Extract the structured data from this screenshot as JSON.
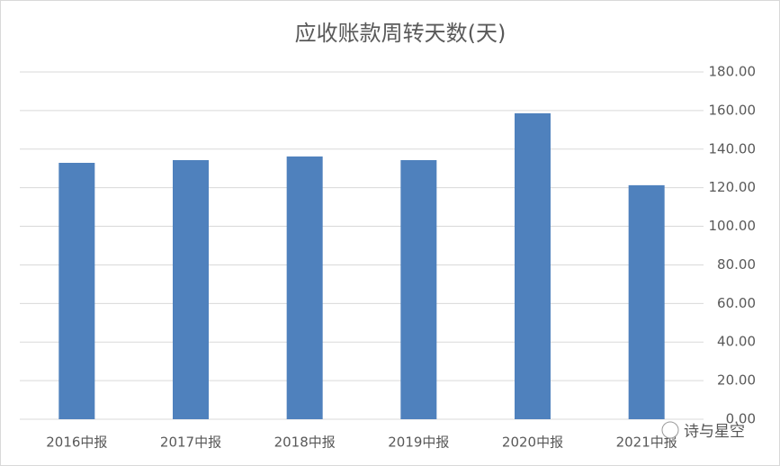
{
  "chart_data": {
    "type": "bar",
    "title": "应收账款周转天数(天)",
    "categories": [
      "2016中报",
      "2017中报",
      "2018中报",
      "2019中报",
      "2020中报",
      "2021中报"
    ],
    "values": [
      132.9,
      134.3,
      136.2,
      134.3,
      158.6,
      121.3
    ],
    "color": "#4f81bd",
    "ylim": [
      0,
      180
    ],
    "yticks": [
      {
        "value": 0,
        "label": "0.00"
      },
      {
        "value": 20,
        "label": "20.00"
      },
      {
        "value": 40,
        "label": "40.00"
      },
      {
        "value": 60,
        "label": "60.00"
      },
      {
        "value": 80,
        "label": "80.00"
      },
      {
        "value": 100,
        "label": "100.00"
      },
      {
        "value": 120,
        "label": "120.00"
      },
      {
        "value": 140,
        "label": "140.00"
      },
      {
        "value": 160,
        "label": "160.00"
      },
      {
        "value": 180,
        "label": "180.00"
      }
    ],
    "grid": true,
    "y_axis_side": "right"
  },
  "watermark": "诗与星空"
}
